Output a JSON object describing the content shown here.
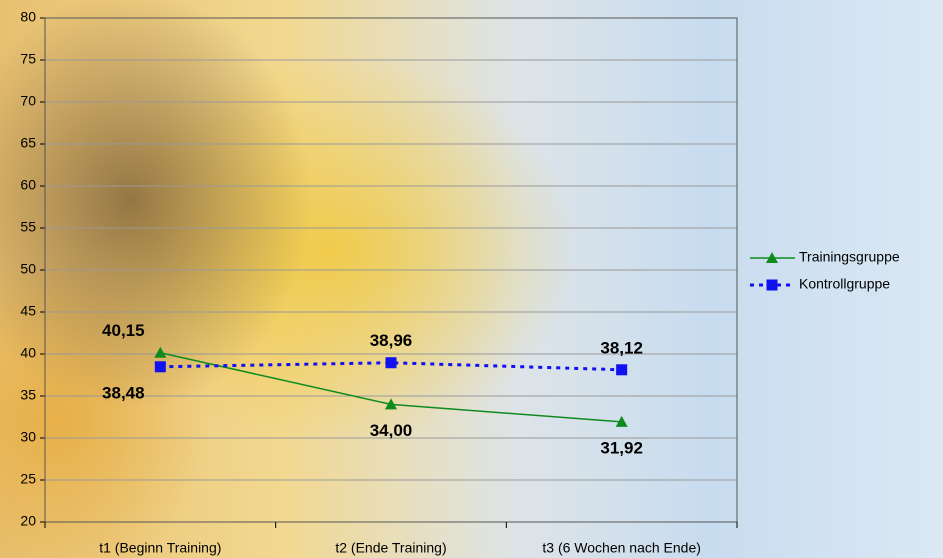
{
  "chart_data": {
    "type": "line",
    "categories": [
      "t1 (Beginn Training)",
      "t2 (Ende Training)",
      "t3 (6 Wochen nach Ende)"
    ],
    "series": [
      {
        "name": "Trainingsgruppe",
        "color": "#0f8a1f",
        "dash": "solid",
        "marker": "triangle",
        "values": [
          40.15,
          34.0,
          31.92
        ],
        "value_labels": [
          "40,15",
          "34,00",
          "31,92"
        ]
      },
      {
        "name": "Kontrollgruppe",
        "color": "#1010f0",
        "dash": "dotted",
        "marker": "square",
        "values": [
          38.48,
          38.96,
          38.12
        ],
        "value_labels": [
          "38,48",
          "38,96",
          "38,12"
        ]
      }
    ],
    "ylim": [
      20,
      80
    ],
    "yticks": [
      20,
      25,
      30,
      35,
      40,
      45,
      50,
      55,
      60,
      65,
      70,
      75,
      80
    ],
    "grid": true,
    "legend": "right"
  }
}
